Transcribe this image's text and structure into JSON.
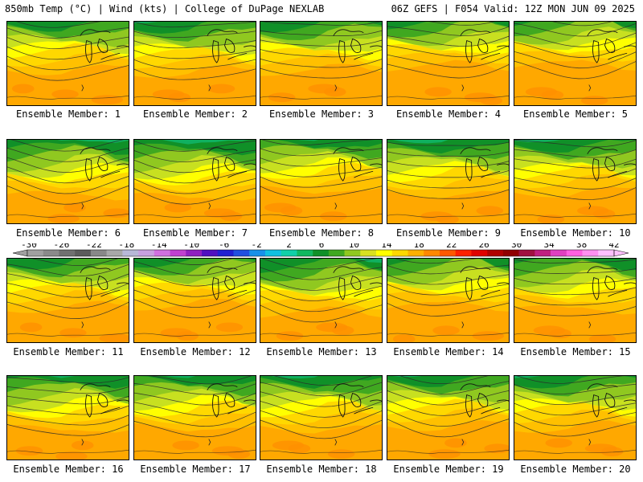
{
  "header": {
    "left": "850mb Temp (°C) | Wind (kts) | College of DuPage NEXLAB",
    "right": "06Z GEFS | F054 Valid: 12Z MON JUN 09 2025"
  },
  "members": [
    {
      "label": "Ensemble Member: 1",
      "shift": 0.0
    },
    {
      "label": "Ensemble Member: 2",
      "shift": 0.3
    },
    {
      "label": "Ensemble Member: 3",
      "shift": 0.1
    },
    {
      "label": "Ensemble Member: 4",
      "shift": -0.4
    },
    {
      "label": "Ensemble Member: 5",
      "shift": -0.6
    },
    {
      "label": "Ensemble Member: 6",
      "shift": 0.9
    },
    {
      "label": "Ensemble Member: 7",
      "shift": 1.1
    },
    {
      "label": "Ensemble Member: 8",
      "shift": 0.2
    },
    {
      "label": "Ensemble Member: 9",
      "shift": 0.7
    },
    {
      "label": "Ensemble Member: 10",
      "shift": 0.5
    },
    {
      "label": "Ensemble Member: 11",
      "shift": 0.1
    },
    {
      "label": "Ensemble Member: 12",
      "shift": -0.2
    },
    {
      "label": "Ensemble Member: 13",
      "shift": 0.8
    },
    {
      "label": "Ensemble Member: 14",
      "shift": -0.1
    },
    {
      "label": "Ensemble Member: 15",
      "shift": 0.3
    },
    {
      "label": "Ensemble Member: 16",
      "shift": 0.6
    },
    {
      "label": "Ensemble Member: 17",
      "shift": 0.4
    },
    {
      "label": "Ensemble Member: 18",
      "shift": 0.5
    },
    {
      "label": "Ensemble Member: 19",
      "shift": 0.2
    },
    {
      "label": "Ensemble Member: 20",
      "shift": 0.4
    }
  ],
  "colorbar": {
    "labels": [
      "-30",
      "-26",
      "-22",
      "-18",
      "-14",
      "-10",
      "-6",
      "-2",
      "2",
      "6",
      "10",
      "14",
      "18",
      "22",
      "26",
      "30",
      "34",
      "38",
      "42"
    ],
    "colors": [
      "#a0a0a0",
      "#8a8a8a",
      "#707070",
      "#5c5c5c",
      "#888888",
      "#a8a8a8",
      "#b8b8d8",
      "#c8a0e0",
      "#d070e0",
      "#c040d0",
      "#9020c0",
      "#5010c0",
      "#2020d0",
      "#2050e0",
      "#1890e8",
      "#10c0e0",
      "#10d0a8",
      "#10b860",
      "#109028",
      "#40a820",
      "#90c820",
      "#d8e020",
      "#ffff00",
      "#ffd800",
      "#ffb000",
      "#ff8800",
      "#ff5800",
      "#ff2000",
      "#e00000",
      "#b00000",
      "#900000",
      "#a01040",
      "#c02080",
      "#e040c0",
      "#ff60e0",
      "#ff90f0",
      "#ffc0ff"
    ]
  }
}
